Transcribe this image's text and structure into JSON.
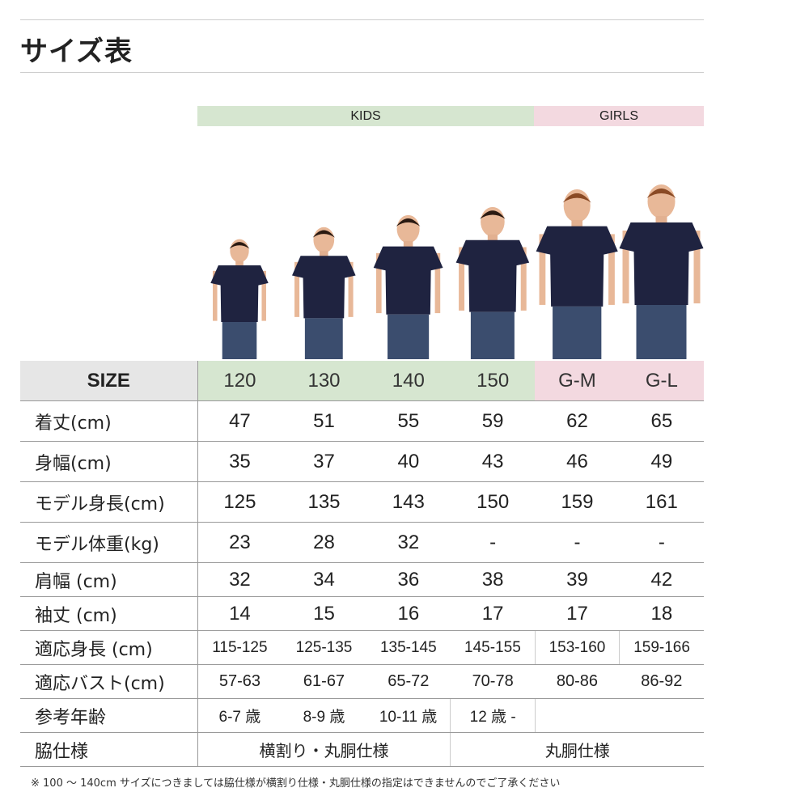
{
  "title": "サイズ表",
  "groups": {
    "kids": "KIDS",
    "girls": "GIRLS"
  },
  "colors": {
    "kids": "#d6e6d0",
    "girls": "#f3d9e0",
    "size_header": "#e6e6e6",
    "shirt": "#1f2340",
    "jeans": "#3b4d6e"
  },
  "size_label": "SIZE",
  "sizes": [
    "120",
    "130",
    "140",
    "150",
    "G-M",
    "G-L"
  ],
  "rows": [
    {
      "label": "着丈(cm)",
      "values": [
        "47",
        "51",
        "55",
        "59",
        "62",
        "65"
      ]
    },
    {
      "label": "身幅(cm)",
      "values": [
        "35",
        "37",
        "40",
        "43",
        "46",
        "49"
      ]
    },
    {
      "label": "モデル身長(cm)",
      "values": [
        "125",
        "135",
        "143",
        "150",
        "159",
        "161"
      ]
    },
    {
      "label": "モデル体重(kg)",
      "values": [
        "23",
        "28",
        "32",
        "-",
        "-",
        "-"
      ]
    },
    {
      "label": "肩幅 (cm)",
      "values": [
        "32",
        "34",
        "36",
        "38",
        "39",
        "42"
      ]
    },
    {
      "label": "袖丈 (cm)",
      "values": [
        "14",
        "15",
        "16",
        "17",
        "17",
        "18"
      ]
    },
    {
      "label": "適応身長 (cm)",
      "values": [
        "115-125",
        "125-135",
        "135-145",
        "145-155",
        "153-160",
        "159-166"
      ]
    },
    {
      "label": "適応バスト(cm)",
      "values": [
        "57-63",
        "61-67",
        "65-72",
        "70-78",
        "80-86",
        "86-92"
      ]
    }
  ],
  "age": {
    "label": "参考年齢",
    "values": [
      "6-7 歳",
      "8-9 歳",
      "10-11 歳",
      "12 歳 -"
    ]
  },
  "side": {
    "label": "脇仕様",
    "kids": "横割り・丸胴仕様",
    "girls": "丸胴仕様"
  },
  "note": "※ 100 ～ 140cm サイズにつきましては脇仕様が横割り仕様・丸胴仕様の指定はできませんのでご了承ください"
}
